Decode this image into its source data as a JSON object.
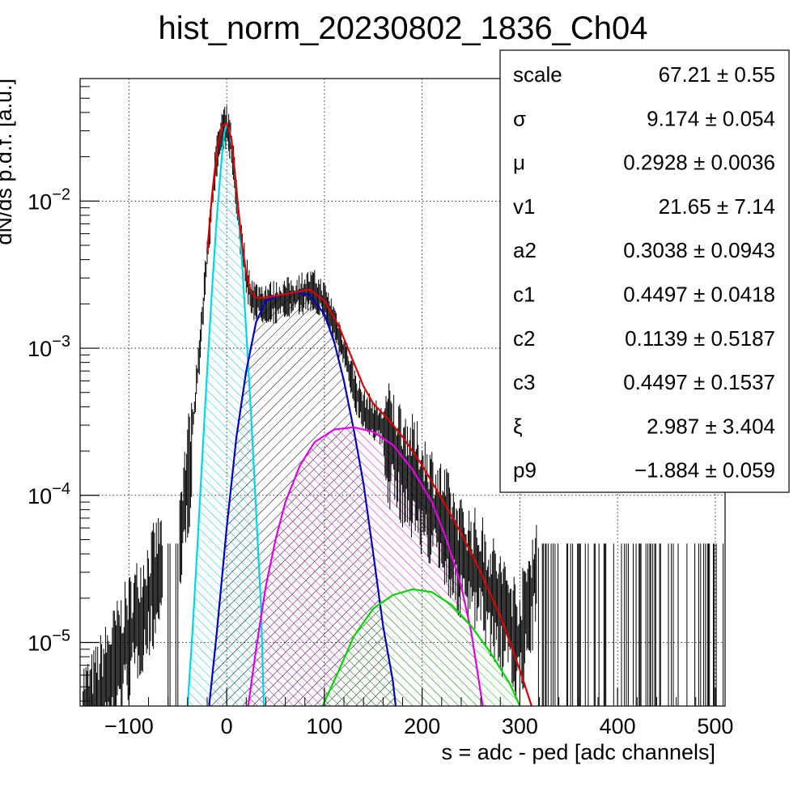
{
  "chart_data": {
    "type": "line",
    "title": "hist_norm_20230802_1836_Ch04",
    "xlabel": "s = adc - ped [adc channels]",
    "ylabel": "dN/ds p.d.f. [a.u.]",
    "xlim": [
      -150,
      510
    ],
    "ylim": [
      3.7e-06,
      0.068
    ],
    "y_scale": "log",
    "grid": true,
    "x_ticks": [
      -100,
      0,
      100,
      200,
      300,
      400,
      500
    ],
    "x_tick_labels": [
      "−100",
      "0",
      "100",
      "200",
      "300",
      "400",
      "500"
    ],
    "y_ticks": [
      {
        "value": 1e-05,
        "base": "10",
        "exp": "−5"
      },
      {
        "value": 0.0001,
        "base": "10",
        "exp": "−4"
      },
      {
        "value": 0.001,
        "base": "10",
        "exp": "−3"
      },
      {
        "value": 0.01,
        "base": "10",
        "exp": "−2"
      }
    ],
    "histogram": {
      "color": "#000000",
      "points": [
        [
          -140,
          3.7e-06
        ],
        [
          -60,
          4.7e-05
        ],
        [
          -50,
          4.7e-05
        ],
        [
          -45,
          9e-05
        ],
        [
          -40,
          0.00015
        ],
        [
          -35,
          0.0003
        ],
        [
          -30,
          0.0007
        ],
        [
          -25,
          0.0017
        ],
        [
          -20,
          0.0045
        ],
        [
          -15,
          0.011
        ],
        [
          -10,
          0.022
        ],
        [
          -5,
          0.032
        ],
        [
          0,
          0.034
        ],
        [
          5,
          0.026
        ],
        [
          10,
          0.012
        ],
        [
          15,
          0.0055
        ],
        [
          20,
          0.0033
        ],
        [
          25,
          0.0025
        ],
        [
          30,
          0.0022
        ],
        [
          40,
          0.0022
        ],
        [
          50,
          0.0022
        ],
        [
          60,
          0.0023
        ],
        [
          70,
          0.0024
        ],
        [
          80,
          0.0026
        ],
        [
          90,
          0.0026
        ],
        [
          100,
          0.0022
        ],
        [
          110,
          0.0016
        ],
        [
          120,
          0.001
        ],
        [
          130,
          0.0006
        ],
        [
          140,
          0.0004
        ],
        [
          150,
          0.00036
        ],
        [
          160,
          0.0003
        ],
        [
          170,
          0.00025
        ],
        [
          180,
          0.0002
        ],
        [
          190,
          0.00016
        ],
        [
          200,
          0.00013
        ],
        [
          210,
          0.0001
        ],
        [
          220,
          8e-05
        ],
        [
          230,
          6e-05
        ],
        [
          240,
          4.5e-05
        ],
        [
          260,
          3.5e-05
        ],
        [
          280,
          2e-05
        ],
        [
          300,
          1.2e-05
        ],
        [
          320,
          4.7e-05
        ],
        [
          340,
          4.7e-05
        ],
        [
          380,
          4.7e-05
        ],
        [
          420,
          4.7e-05
        ],
        [
          450,
          4.7e-05
        ],
        [
          500,
          4.7e-05
        ]
      ]
    },
    "series": [
      {
        "color": "#00d8e6",
        "fill": "cyan-hatch",
        "points": [
          [
            -40,
            3.7e-06
          ],
          [
            -35,
            1.2e-05
          ],
          [
            -30,
            4.5e-05
          ],
          [
            -25,
            0.00018
          ],
          [
            -20,
            0.0007
          ],
          [
            -15,
            0.0025
          ],
          [
            -10,
            0.008
          ],
          [
            -5,
            0.02
          ],
          [
            -2,
            0.03
          ],
          [
            0,
            0.033
          ],
          [
            3,
            0.03
          ],
          [
            6,
            0.022
          ],
          [
            10,
            0.012
          ],
          [
            15,
            0.0045
          ],
          [
            20,
            0.0013
          ],
          [
            25,
            0.00035
          ],
          [
            30,
            8e-05
          ],
          [
            35,
            1.8e-05
          ],
          [
            38,
            3.7e-06
          ]
        ]
      },
      {
        "color": "#0000c8",
        "fill": "black-hatch",
        "points": [
          [
            -18,
            3.7e-06
          ],
          [
            -10,
            1.2e-05
          ],
          [
            0,
            6e-05
          ],
          [
            10,
            0.00025
          ],
          [
            20,
            0.0007
          ],
          [
            30,
            0.0015
          ],
          [
            40,
            0.0021
          ],
          [
            55,
            0.0023
          ],
          [
            70,
            0.0024
          ],
          [
            85,
            0.0023
          ],
          [
            100,
            0.0017
          ],
          [
            110,
            0.0011
          ],
          [
            120,
            0.0006
          ],
          [
            130,
            0.00028
          ],
          [
            140,
            0.00012
          ],
          [
            150,
            4e-05
          ],
          [
            160,
            1.3e-05
          ],
          [
            170,
            5.5e-06
          ],
          [
            173,
            3.7e-06
          ]
        ]
      },
      {
        "color": "#e600e6",
        "fill": "magenta-hatch",
        "points": [
          [
            22,
            3.7e-06
          ],
          [
            30,
            9e-06
          ],
          [
            40,
            2.4e-05
          ],
          [
            50,
            5e-05
          ],
          [
            60,
            9e-05
          ],
          [
            75,
            0.00016
          ],
          [
            90,
            0.00023
          ],
          [
            110,
            0.00028
          ],
          [
            130,
            0.00029
          ],
          [
            150,
            0.00027
          ],
          [
            170,
            0.00022
          ],
          [
            190,
            0.00015
          ],
          [
            210,
            9e-05
          ],
          [
            225,
            5e-05
          ],
          [
            240,
            2.4e-05
          ],
          [
            250,
            1.2e-05
          ],
          [
            258,
            5.5e-06
          ],
          [
            262,
            3.7e-06
          ]
        ]
      },
      {
        "color": "#00d800",
        "fill": "green-hatch",
        "points": [
          [
            98,
            3.7e-06
          ],
          [
            115,
            6.5e-06
          ],
          [
            130,
            1.1e-05
          ],
          [
            150,
            1.7e-05
          ],
          [
            170,
            2.1e-05
          ],
          [
            190,
            2.3e-05
          ],
          [
            210,
            2.2e-05
          ],
          [
            230,
            1.8e-05
          ],
          [
            250,
            1.3e-05
          ],
          [
            270,
            8.5e-06
          ],
          [
            290,
            5.2e-06
          ],
          [
            300,
            3.7e-06
          ]
        ]
      },
      {
        "color": "#e00000",
        "fill": "none",
        "points": [
          [
            -20,
            0.0045
          ],
          [
            -15,
            0.011
          ],
          [
            -10,
            0.022
          ],
          [
            -5,
            0.032
          ],
          [
            0,
            0.034
          ],
          [
            5,
            0.026
          ],
          [
            10,
            0.012
          ],
          [
            15,
            0.0055
          ],
          [
            20,
            0.0032
          ],
          [
            25,
            0.0024
          ],
          [
            30,
            0.0022
          ],
          [
            40,
            0.0022
          ],
          [
            55,
            0.0023
          ],
          [
            70,
            0.0024
          ],
          [
            85,
            0.0025
          ],
          [
            100,
            0.0021
          ],
          [
            115,
            0.0014
          ],
          [
            130,
            0.0008
          ],
          [
            140,
            0.00055
          ],
          [
            150,
            0.00042
          ],
          [
            165,
            0.00033
          ],
          [
            180,
            0.00025
          ],
          [
            200,
            0.00016
          ],
          [
            220,
            9.5e-05
          ],
          [
            240,
            5.5e-05
          ],
          [
            260,
            3e-05
          ],
          [
            280,
            1.5e-05
          ],
          [
            300,
            6.5e-06
          ],
          [
            312,
            3.7e-06
          ]
        ]
      }
    ],
    "legend_position": "top-right",
    "stats": [
      {
        "name": "scale",
        "value": "67.21",
        "pm": "±",
        "err": "0.55"
      },
      {
        "name": "σ",
        "value": "9.174",
        "pm": "±",
        "err": "0.054"
      },
      {
        "name": "μ",
        "value": "0.2928",
        "pm": "±",
        "err": "0.0036"
      },
      {
        "name": "v1",
        "value": "21.65",
        "pm": "±",
        "err": "7.14"
      },
      {
        "name": "a2",
        "value": "0.3038",
        "pm": "±",
        "err": "0.0943"
      },
      {
        "name": "c1",
        "value": "0.4497",
        "pm": "±",
        "err": "0.0418"
      },
      {
        "name": "c2",
        "value": "0.1139",
        "pm": "±",
        "err": "0.5187"
      },
      {
        "name": "c3",
        "value": "0.4497",
        "pm": "±",
        "err": "0.1537"
      },
      {
        "name": "ξ",
        "value": "2.987",
        "pm": "±",
        "err": "3.404"
      },
      {
        "name": "p9",
        "value": "−1.884",
        "pm": "±",
        "err": "0.059"
      }
    ]
  }
}
